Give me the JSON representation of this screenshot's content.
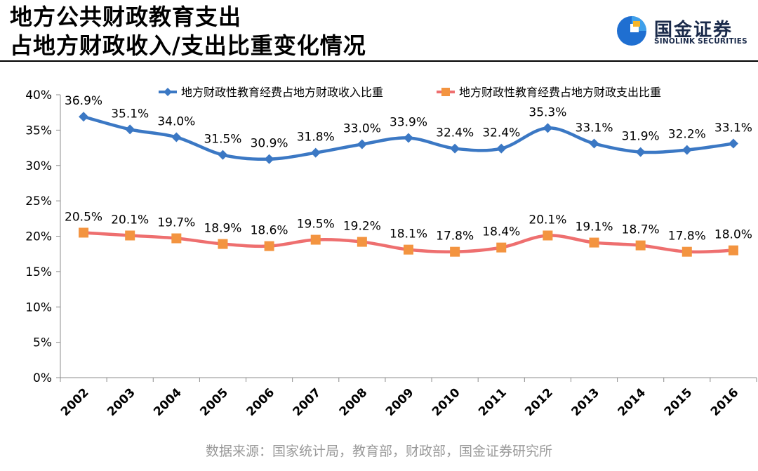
{
  "header": {
    "title_line1": "地方公共财政教育支出",
    "title_line2": "占地方财政收入/支出比重变化情况"
  },
  "brand": {
    "name_cn": "国金证券",
    "name_en": "SINOLINK SECURITIES",
    "icon": "sinolink-logo-icon"
  },
  "footer": {
    "source": "数据来源：国家统计局，教育部，财政部，国金证券研究所"
  },
  "chart_data": {
    "type": "line",
    "categories": [
      "2002",
      "2003",
      "2004",
      "2005",
      "2006",
      "2007",
      "2008",
      "2009",
      "2010",
      "2011",
      "2012",
      "2013",
      "2014",
      "2015",
      "2016"
    ],
    "series": [
      {
        "name": "地方财政性教育经费占地方财政收入比重",
        "color": "#3b78c4",
        "marker": "diamond",
        "values": [
          36.9,
          35.1,
          34.0,
          31.5,
          30.9,
          31.8,
          33.0,
          33.9,
          32.4,
          32.4,
          35.3,
          33.1,
          31.9,
          32.2,
          33.1
        ],
        "labels": [
          "36.9%",
          "35.1%",
          "34.0%",
          "31.5%",
          "30.9%",
          "31.8%",
          "33.0%",
          "33.9%",
          "32.4%",
          "32.4%",
          "35.3%",
          "33.1%",
          "31.9%",
          "32.2%",
          "33.1%"
        ]
      },
      {
        "name": "地方财政性教育经费占地方财政支出比重",
        "color": "#ee6f6f",
        "marker_color": "#f39440",
        "marker": "square",
        "values": [
          20.5,
          20.1,
          19.7,
          18.9,
          18.6,
          19.5,
          19.2,
          18.1,
          17.8,
          18.4,
          20.1,
          19.1,
          18.7,
          17.8,
          18.0
        ],
        "labels": [
          "20.5%",
          "20.1%",
          "19.7%",
          "18.9%",
          "18.6%",
          "19.5%",
          "19.2%",
          "18.1%",
          "17.8%",
          "18.4%",
          "20.1%",
          "19.1%",
          "18.7%",
          "17.8%",
          "18.0%"
        ]
      }
    ],
    "ylim": [
      0,
      40
    ],
    "yticks": [
      0,
      5,
      10,
      15,
      20,
      25,
      30,
      35,
      40
    ],
    "ytick_labels": [
      "0%",
      "5%",
      "10%",
      "15%",
      "20%",
      "25%",
      "30%",
      "35%",
      "40%"
    ],
    "grid": false,
    "legend_position": "top",
    "xlabel": "",
    "ylabel": ""
  }
}
